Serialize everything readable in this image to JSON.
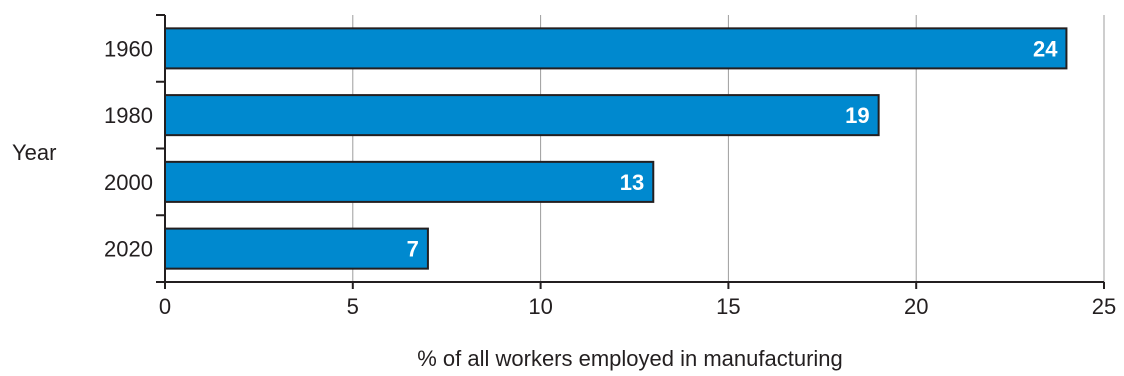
{
  "chart_data": {
    "type": "bar",
    "orientation": "horizontal",
    "categories": [
      "1960",
      "1980",
      "2000",
      "2020"
    ],
    "values": [
      24,
      19,
      13,
      7
    ],
    "value_labels": [
      "24",
      "19",
      "13",
      "7"
    ],
    "xlabel": "% of all workers employed in manufacturing",
    "ylabel": "Year",
    "xlim": [
      0,
      25
    ],
    "xticks": [
      "0",
      "5",
      "10",
      "15",
      "20",
      "25"
    ],
    "grid": "vertical",
    "bar_color": "#0089cf",
    "bar_edge_color": "#231f20"
  }
}
